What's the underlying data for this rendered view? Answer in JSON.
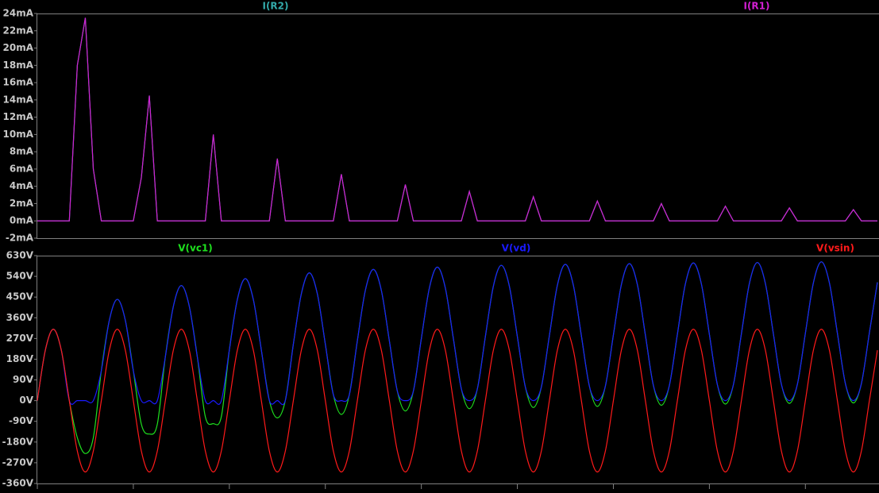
{
  "chart_data": [
    {
      "type": "line",
      "x": [
        0,
        2.5,
        5,
        7.5,
        10,
        12.5,
        15,
        17.5,
        20,
        22.5,
        25,
        27.5,
        30,
        32.5,
        35,
        37.5,
        40,
        42.5,
        45,
        47.5,
        50,
        52.5,
        55,
        57.5,
        60,
        62.5,
        65,
        67.5,
        70,
        72.5,
        75,
        77.5,
        80,
        82.5,
        85,
        87.5,
        90,
        92.5,
        95,
        97.5,
        100,
        102.5,
        105,
        107.5,
        110,
        112.5,
        115,
        117.5,
        120,
        122.5,
        125,
        127.5,
        130,
        132.5,
        135,
        137.5,
        140,
        142.5,
        145,
        147.5,
        150,
        152.5,
        155,
        157.5,
        160,
        162.5,
        165,
        167.5,
        170,
        172.5,
        175,
        177.5,
        180,
        182.5,
        185,
        187.5,
        190,
        192.5,
        195,
        197.5,
        200,
        202.5,
        205,
        207.5,
        210,
        212.5,
        215,
        217.5,
        220,
        222.5,
        225,
        227.5,
        230,
        232.5,
        235,
        237.5,
        240,
        242.5,
        245,
        247.5,
        250,
        252.5,
        255,
        257.5,
        260,
        262.5
      ],
      "xlim": [
        0,
        263
      ],
      "ylim": [
        -2,
        24
      ],
      "yticks": [
        {
          "value": 24,
          "label": "24mA"
        },
        {
          "value": 22,
          "label": "22mA"
        },
        {
          "value": 20,
          "label": "20mA"
        },
        {
          "value": 18,
          "label": "18mA"
        },
        {
          "value": 16,
          "label": "16mA"
        },
        {
          "value": 14,
          "label": "14mA"
        },
        {
          "value": 12,
          "label": "12mA"
        },
        {
          "value": 10,
          "label": "10mA"
        },
        {
          "value": 8,
          "label": "8mA"
        },
        {
          "value": 6,
          "label": "6mA"
        },
        {
          "value": 4,
          "label": "4mA"
        },
        {
          "value": 2,
          "label": "2mA"
        },
        {
          "value": 0,
          "label": "0mA"
        },
        {
          "value": -2,
          "label": "-2mA"
        }
      ],
      "series": [
        {
          "name": "I(R2)",
          "color": "#33aaaa",
          "values": [
            0,
            0,
            0,
            0,
            0,
            18,
            23.5,
            6,
            0,
            0,
            0,
            0,
            0,
            5,
            14.5,
            0,
            0,
            0,
            0,
            0,
            0,
            0,
            10,
            0,
            0,
            0,
            0,
            0,
            0,
            0,
            7.2,
            0,
            0,
            0,
            0,
            0,
            0,
            0,
            5.4,
            0,
            0,
            0,
            0,
            0,
            0,
            0,
            4.2,
            0,
            0,
            0,
            0,
            0,
            0,
            0,
            3.4,
            0,
            0,
            0,
            0,
            0,
            0,
            0,
            2.8,
            0,
            0,
            0,
            0,
            0,
            0,
            0,
            2.3,
            0,
            0,
            0,
            0,
            0,
            0,
            0,
            2.0,
            0,
            0,
            0,
            0,
            0,
            0,
            0,
            1.7,
            0,
            0,
            0,
            0,
            0,
            0,
            0,
            1.5,
            0,
            0,
            0,
            0,
            0,
            0,
            0,
            1.3,
            0,
            0,
            0
          ]
        },
        {
          "name": "I(R1)",
          "color": "#d21fd2",
          "values": [
            0,
            0,
            0,
            0,
            0,
            18,
            23.5,
            6,
            0,
            0,
            0,
            0,
            0,
            5,
            14.5,
            0,
            0,
            0,
            0,
            0,
            0,
            0,
            10,
            0,
            0,
            0,
            0,
            0,
            0,
            0,
            7.2,
            0,
            0,
            0,
            0,
            0,
            0,
            0,
            5.4,
            0,
            0,
            0,
            0,
            0,
            0,
            0,
            4.2,
            0,
            0,
            0,
            0,
            0,
            0,
            0,
            3.4,
            0,
            0,
            0,
            0,
            0,
            0,
            0,
            2.8,
            0,
            0,
            0,
            0,
            0,
            0,
            0,
            2.3,
            0,
            0,
            0,
            0,
            0,
            0,
            0,
            2.0,
            0,
            0,
            0,
            0,
            0,
            0,
            0,
            1.7,
            0,
            0,
            0,
            0,
            0,
            0,
            0,
            1.5,
            0,
            0,
            0,
            0,
            0,
            0,
            0,
            1.3,
            0,
            0,
            0
          ]
        }
      ]
    },
    {
      "type": "line",
      "x": [
        0,
        2.5,
        5,
        7.5,
        10,
        12.5,
        15,
        17.5,
        20,
        22.5,
        25,
        27.5,
        30,
        32.5,
        35,
        37.5,
        40,
        42.5,
        45,
        47.5,
        50,
        52.5,
        55,
        57.5,
        60,
        62.5,
        65,
        67.5,
        70,
        72.5,
        75,
        77.5,
        80,
        82.5,
        85,
        87.5,
        90,
        92.5,
        95,
        97.5,
        100,
        102.5,
        105,
        107.5,
        110,
        112.5,
        115,
        117.5,
        120,
        122.5,
        125,
        127.5,
        130,
        132.5,
        135,
        137.5,
        140,
        142.5,
        145,
        147.5,
        150,
        152.5,
        155,
        157.5,
        160,
        162.5,
        165,
        167.5,
        170,
        172.5,
        175,
        177.5,
        180,
        182.5,
        185,
        187.5,
        190,
        192.5,
        195,
        197.5,
        200,
        202.5,
        205,
        207.5,
        210,
        212.5,
        215,
        217.5,
        220,
        222.5,
        225,
        227.5,
        230,
        232.5,
        235,
        237.5,
        240,
        242.5,
        245,
        247.5,
        250,
        252.5,
        255,
        257.5,
        260,
        262.5
      ],
      "xlim": [
        0,
        263
      ],
      "xticks": [
        0,
        30,
        60,
        90,
        120,
        150,
        180,
        210,
        240
      ],
      "ylim": [
        -360,
        630
      ],
      "yticks": [
        {
          "value": 630,
          "label": "630V"
        },
        {
          "value": 540,
          "label": "540V"
        },
        {
          "value": 450,
          "label": "450V"
        },
        {
          "value": 360,
          "label": "360V"
        },
        {
          "value": 270,
          "label": "270V"
        },
        {
          "value": 180,
          "label": "180V"
        },
        {
          "value": 90,
          "label": "90V"
        },
        {
          "value": 0,
          "label": "0V"
        },
        {
          "value": -90,
          "label": "-90V"
        },
        {
          "value": -180,
          "label": "-180V"
        },
        {
          "value": -270,
          "label": "-270V"
        },
        {
          "value": -360,
          "label": "-360V"
        }
      ],
      "series": [
        {
          "name": "V(vc1)",
          "color": "#1ee01e",
          "values": [
            0,
            219,
            310,
            219,
            0,
            -161,
            -230,
            -161,
            130,
            349,
            440,
            349,
            130,
            -102,
            -145,
            -102,
            190,
            409,
            500,
            409,
            190,
            -70,
            -100,
            -70,
            220,
            439,
            530,
            439,
            220,
            1,
            -75,
            1,
            245,
            464,
            555,
            464,
            245,
            26,
            -60,
            26,
            260,
            479,
            570,
            479,
            260,
            41,
            -45,
            41,
            270,
            489,
            580,
            489,
            270,
            51,
            -35,
            51,
            278,
            497,
            588,
            497,
            278,
            59,
            -30,
            59,
            282,
            501,
            592,
            501,
            282,
            63,
            -25,
            63,
            285,
            504,
            595,
            504,
            285,
            66,
            -20,
            66,
            288,
            507,
            598,
            507,
            288,
            69,
            -15,
            69,
            290,
            509,
            600,
            509,
            290,
            71,
            -12,
            71,
            293,
            512,
            603,
            512,
            293,
            74,
            -10,
            74,
            295,
            514
          ]
        },
        {
          "name": "V(vd)",
          "color": "#1a1aff",
          "values": [
            0,
            219,
            310,
            219,
            0,
            0,
            0,
            0,
            130,
            349,
            440,
            349,
            130,
            0,
            0,
            0,
            190,
            409,
            500,
            409,
            190,
            0,
            0,
            0,
            220,
            439,
            530,
            439,
            220,
            1,
            0,
            1,
            245,
            464,
            555,
            464,
            245,
            26,
            0,
            26,
            260,
            479,
            570,
            479,
            260,
            41,
            0,
            41,
            270,
            489,
            580,
            489,
            270,
            51,
            0,
            51,
            278,
            497,
            588,
            497,
            278,
            59,
            0,
            59,
            282,
            501,
            592,
            501,
            282,
            63,
            0,
            63,
            285,
            504,
            595,
            504,
            285,
            66,
            0,
            66,
            288,
            507,
            598,
            507,
            288,
            69,
            0,
            69,
            290,
            509,
            600,
            509,
            290,
            71,
            0,
            71,
            293,
            512,
            603,
            512,
            293,
            74,
            0,
            74,
            295,
            514
          ]
        },
        {
          "name": "V(vsin)",
          "color": "#ff1a1a",
          "values": [
            0,
            219,
            310,
            219,
            0,
            -219,
            -310,
            -219,
            0,
            219,
            310,
            219,
            0,
            -219,
            -310,
            -219,
            0,
            219,
            310,
            219,
            0,
            -219,
            -310,
            -219,
            0,
            219,
            310,
            219,
            0,
            -219,
            -310,
            -219,
            0,
            219,
            310,
            219,
            0,
            -219,
            -310,
            -219,
            0,
            219,
            310,
            219,
            0,
            -219,
            -310,
            -219,
            0,
            219,
            310,
            219,
            0,
            -219,
            -310,
            -219,
            0,
            219,
            310,
            219,
            0,
            -219,
            -310,
            -219,
            0,
            219,
            310,
            219,
            0,
            -219,
            -310,
            -219,
            0,
            219,
            310,
            219,
            0,
            -219,
            -310,
            -219,
            0,
            219,
            310,
            219,
            0,
            -219,
            -310,
            -219,
            0,
            219,
            310,
            219,
            0,
            -219,
            -310,
            -219,
            0,
            219,
            310,
            219,
            0,
            -219,
            -310,
            -219,
            0,
            219
          ]
        }
      ]
    }
  ]
}
